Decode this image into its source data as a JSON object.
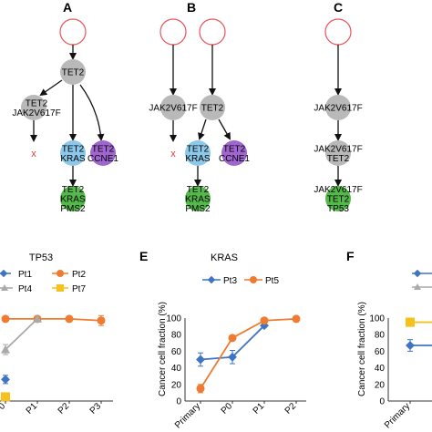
{
  "trees": {
    "A": {
      "letter": "A",
      "nodes": [
        "TET2",
        "TET2\nJAK2V617F",
        "TET2\nKRAS",
        "TET2\nCCNE1",
        "TET2\nKRAS\nPMS2"
      ],
      "extinct_mark": "x"
    },
    "B": {
      "letter": "B",
      "nodes": [
        "JAK2V617F",
        "TET2",
        "TET2\nKRAS",
        "TET2\nCCNE1",
        "TET2\nKRAS\nPMS2"
      ],
      "extinct_mark": "x"
    },
    "C": {
      "letter": "C",
      "nodes": [
        "JAK2V617F",
        "JAK2V617F\nTET2",
        "JAK2V617F\nTET2\nTP53"
      ]
    }
  },
  "colors": {
    "root_outline": "#e8545a",
    "gray_node": "#b9b9b9",
    "blue_node": "#8cc8ea",
    "purple_node": "#a066d0",
    "green_node": "#55b84a",
    "x_mark": "#e23b3b",
    "blue": "#3f74c4",
    "orange": "#ee7b2f",
    "gray": "#a9a9a9",
    "yellow": "#f5c11a"
  },
  "chart_data": [
    {
      "panel": "D",
      "type": "line",
      "title": "TP53",
      "categories": [
        "P0",
        "P1",
        "P2",
        "P3"
      ],
      "legend": [
        "Pt1",
        "Pt2",
        "Pt4",
        "Pt7"
      ],
      "series": [
        {
          "name": "Pt1",
          "x": [
            "P0"
          ],
          "values": [
            26
          ]
        },
        {
          "name": "Pt2",
          "x": [
            "P0",
            "P1",
            "P2",
            "P3"
          ],
          "values": [
            99,
            99,
            99,
            97
          ]
        },
        {
          "name": "Pt4",
          "x": [
            "P0",
            "P1"
          ],
          "values": [
            62,
            99
          ]
        },
        {
          "name": "Pt7",
          "x": [
            "P0"
          ],
          "values": [
            5
          ]
        }
      ],
      "ylim": [
        0,
        100
      ]
    },
    {
      "panel": "E",
      "type": "line",
      "title": "KRAS",
      "ylabel": "Cancer cell fraction (%)",
      "categories": [
        "Primary",
        "P0",
        "P1",
        "P2"
      ],
      "yticks": [
        "0",
        "20",
        "40",
        "60",
        "80",
        "100"
      ],
      "legend": [
        "Pt3",
        "Pt5"
      ],
      "series": [
        {
          "name": "Pt3",
          "x": [
            "Primary",
            "P0",
            "P1"
          ],
          "values": [
            50,
            53,
            91
          ]
        },
        {
          "name": "Pt5",
          "x": [
            "Primary",
            "P0",
            "P1",
            "P2"
          ],
          "values": [
            15,
            76,
            97,
            99
          ]
        }
      ],
      "ylim": [
        0,
        100
      ]
    },
    {
      "panel": "F",
      "type": "line",
      "ylabel": "Cancer cell fraction (%)",
      "categories": [
        "Primary"
      ],
      "yticks": [
        "0",
        "20",
        "40",
        "60",
        "80",
        "100"
      ],
      "series": [
        {
          "x": [
            "Primary"
          ],
          "values": [
            67
          ]
        },
        {
          "x": [
            "Primary"
          ],
          "values": [
            95
          ]
        }
      ],
      "ylim": [
        0,
        100
      ]
    }
  ]
}
